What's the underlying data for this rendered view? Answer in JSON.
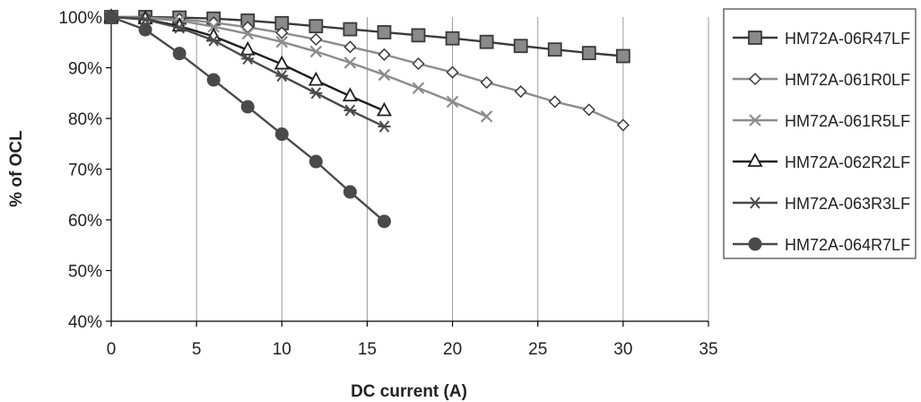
{
  "chart_data": {
    "type": "line",
    "title": "",
    "xlabel": "DC current (A)",
    "ylabel": "% of OCL",
    "xlim": [
      0,
      35
    ],
    "ylim": [
      40,
      100
    ],
    "x_ticks": [
      0,
      5,
      10,
      15,
      20,
      25,
      30,
      35
    ],
    "x_tick_labels": [
      "0",
      "5",
      "10",
      "15",
      "20",
      "25",
      "30",
      "35"
    ],
    "y_ticks": [
      40,
      50,
      60,
      70,
      80,
      90,
      100
    ],
    "y_tick_labels": [
      "40%",
      "50%",
      "60%",
      "70%",
      "80%",
      "90%",
      "100%"
    ],
    "grid": "vertical",
    "legend_position": "right",
    "series": [
      {
        "name": "HM72A-06R47LF",
        "marker": "square-filled",
        "color": "#3a3a3a",
        "marker_fill": "#8a8a8a",
        "x": [
          0,
          2,
          4,
          6,
          8,
          10,
          12,
          14,
          16,
          18,
          20,
          22,
          24,
          26,
          28,
          30
        ],
        "values": [
          100,
          100,
          99.9,
          99.7,
          99.3,
          98.8,
          98.2,
          97.6,
          97.0,
          96.4,
          95.8,
          95.1,
          94.3,
          93.6,
          92.9,
          92.3
        ]
      },
      {
        "name": "HM72A-061R0LF",
        "marker": "diamond-open",
        "color": "#8c8c8c",
        "marker_fill": "#ffffff",
        "x": [
          0,
          2,
          4,
          6,
          8,
          10,
          12,
          14,
          16,
          18,
          20,
          22,
          24,
          26,
          28,
          30
        ],
        "values": [
          100,
          99.9,
          99.6,
          98.9,
          98.0,
          96.9,
          95.6,
          94.1,
          92.6,
          90.8,
          89.1,
          87.1,
          85.3,
          83.3,
          81.7,
          78.7
        ]
      },
      {
        "name": "HM72A-061R5LF",
        "marker": "x",
        "color": "#8c8c8c",
        "marker_fill": "none",
        "x": [
          0,
          2,
          4,
          6,
          8,
          10,
          12,
          14,
          16,
          18,
          20,
          22
        ],
        "values": [
          100,
          99.8,
          99.3,
          98.1,
          96.7,
          95.1,
          93.2,
          91.0,
          88.6,
          86.0,
          83.3,
          80.4
        ]
      },
      {
        "name": "HM72A-062R2LF",
        "marker": "triangle-open",
        "color": "#1e1e1e",
        "marker_fill": "#ffffff",
        "x": [
          0,
          2,
          4,
          6,
          8,
          10,
          12,
          14,
          16
        ],
        "values": [
          100,
          99.6,
          98.2,
          96.2,
          93.5,
          90.7,
          87.5,
          84.4,
          81.5
        ]
      },
      {
        "name": "HM72A-063R3LF",
        "marker": "asterisk",
        "color": "#4a4a4a",
        "marker_fill": "none",
        "x": [
          0,
          2,
          4,
          6,
          8,
          10,
          12,
          14,
          16
        ],
        "values": [
          100,
          99.5,
          97.9,
          95.4,
          91.8,
          88.4,
          85.0,
          81.6,
          78.4
        ]
      },
      {
        "name": "HM72A-064R7LF",
        "marker": "circle-filled",
        "color": "#4a4a4a",
        "marker_fill": "#4a4a4a",
        "x": [
          0,
          2,
          4,
          6,
          8,
          10,
          12,
          14,
          16
        ],
        "values": [
          100,
          97.5,
          92.8,
          87.6,
          82.3,
          76.9,
          71.5,
          65.5,
          59.7
        ]
      }
    ]
  }
}
